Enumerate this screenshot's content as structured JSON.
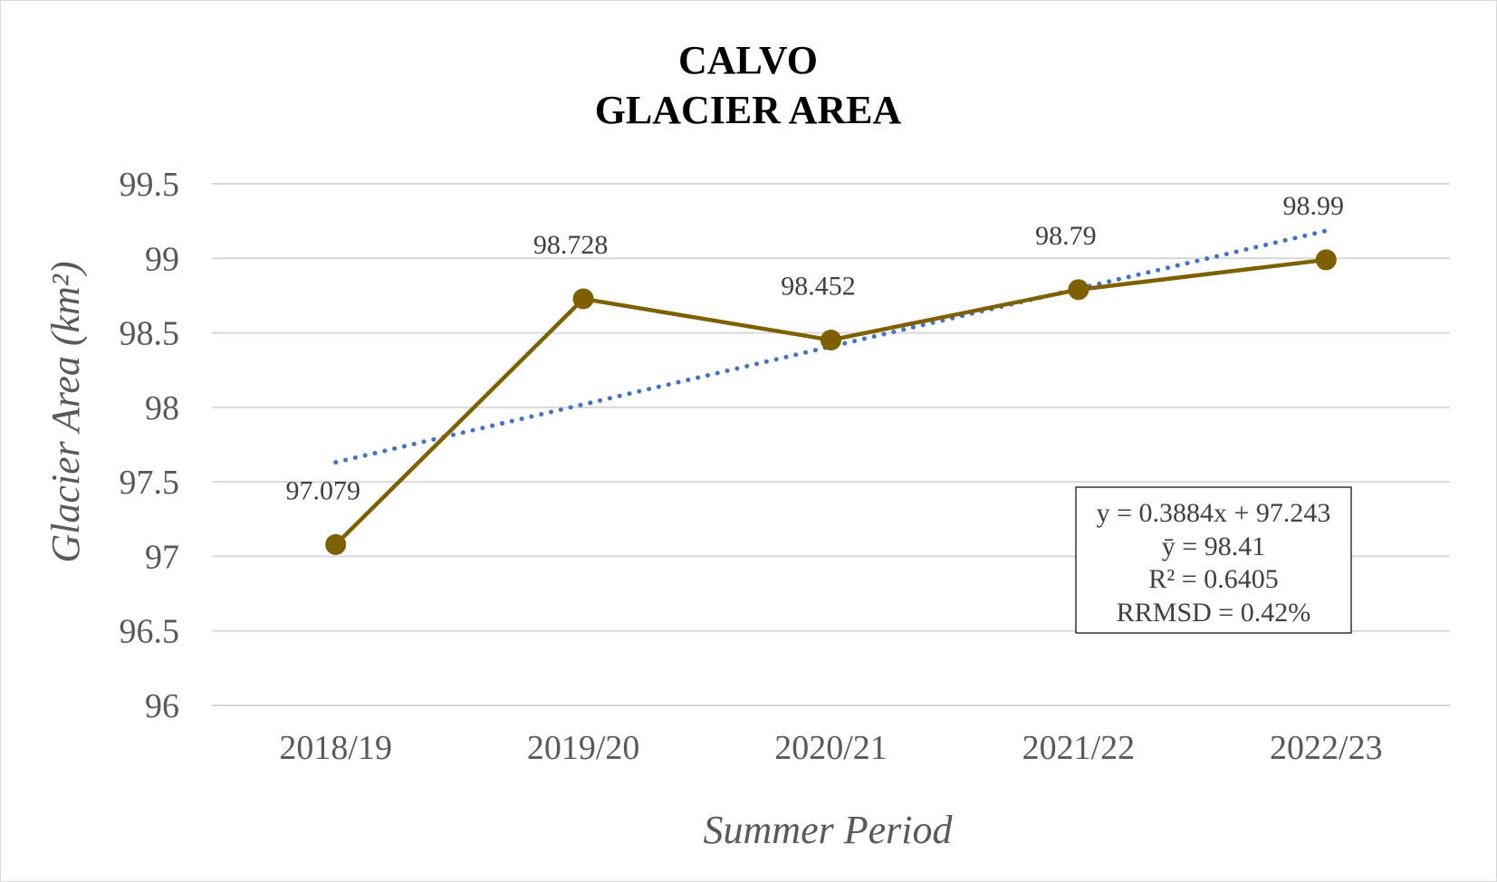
{
  "chart_data": {
    "type": "line",
    "title": [
      "CALVO",
      "GLACIER AREA"
    ],
    "xlabel": "Summer Period",
    "ylabel": "Glacier Area (km²)",
    "categories": [
      "2018/19",
      "2019/20",
      "2020/21",
      "2021/22",
      "2022/23"
    ],
    "series": [
      {
        "values": [
          97.079,
          98.728,
          98.452,
          98.79,
          98.99
        ],
        "data_labels": [
          "97.079",
          "98.728",
          "98.452",
          "98.79",
          "98.99"
        ],
        "color": "#7f6000"
      }
    ],
    "trendline": {
      "type": "linear",
      "slope": 0.3884,
      "intercept": 97.243,
      "style": "dotted",
      "color": "#4472c4"
    },
    "stats_box": [
      "y = 0.3884x + 97.243",
      "ȳ = 98.41",
      "R² = 0.6405",
      "RRMSD = 0.42%"
    ],
    "ylim": [
      96,
      99.5
    ],
    "yticks": [
      "96",
      "96.5",
      "97",
      "97.5",
      "98",
      "98.5",
      "99",
      "99.5"
    ],
    "grid": true,
    "legend": "none",
    "gridline_color": "#d9d9d9"
  }
}
